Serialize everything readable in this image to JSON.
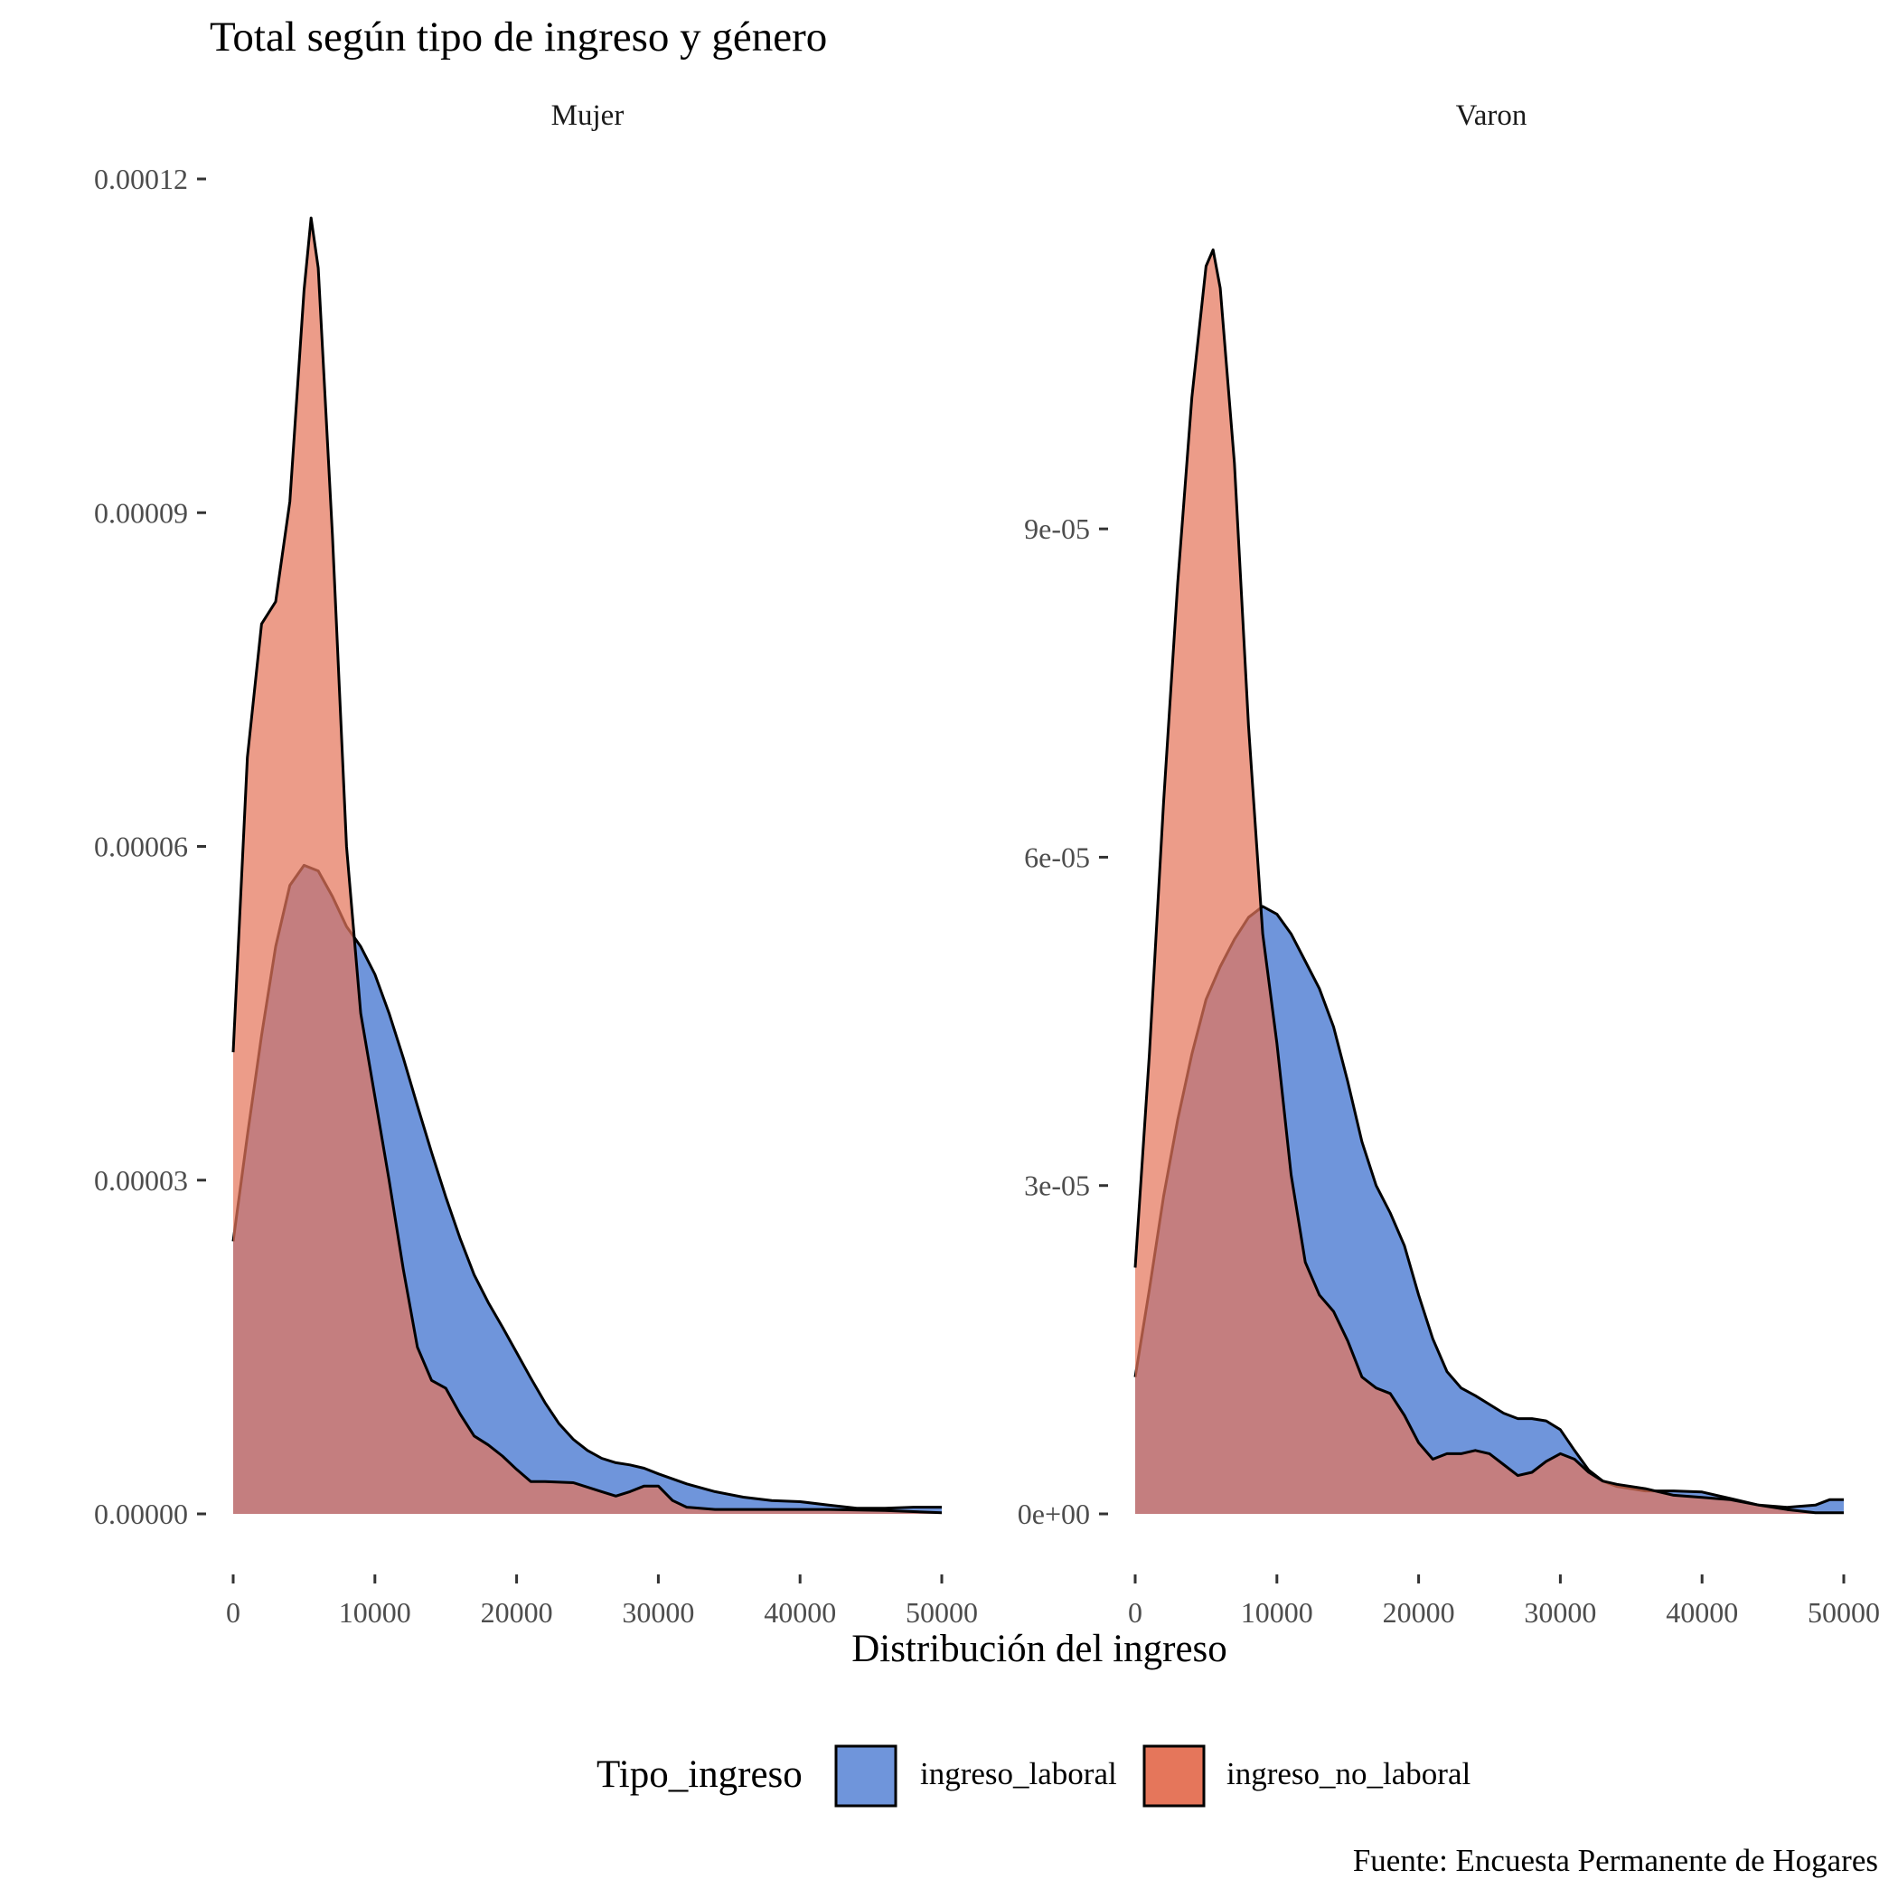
{
  "chart_data": {
    "type": "area",
    "title": "Total según tipo de ingreso y género",
    "xlabel": "Distribución del ingreso",
    "ylabel": "",
    "caption": "Fuente: Encuesta Permanente de Hogares",
    "legend": {
      "title": "Tipo_ingreso",
      "position": "bottom",
      "entries": [
        {
          "label": "ingreso_laboral",
          "color": "#6f95db"
        },
        {
          "label": "ingreso_no_laboral",
          "color": "#e5765b"
        }
      ]
    },
    "x_ticks": [
      0,
      10000,
      20000,
      30000,
      40000,
      50000
    ],
    "x_tick_labels": [
      "0",
      "10000",
      "20000",
      "30000",
      "40000",
      "50000"
    ],
    "xlim": [
      0,
      50000
    ],
    "grid": false,
    "panels": [
      {
        "strip": "Mujer",
        "ylim": [
          0,
          0.00012
        ],
        "y_ticks": [
          0,
          3e-05,
          6e-05,
          9e-05,
          0.00012
        ],
        "y_tick_labels": [
          "0.00000",
          "0.00003",
          "0.00006",
          "0.00009",
          "0.00012"
        ],
        "series": [
          {
            "name": "ingreso_laboral",
            "points": [
              [
                0,
                2.45e-05
              ],
              [
                1000,
                3.4e-05
              ],
              [
                2000,
                4.3e-05
              ],
              [
                3000,
                5.1e-05
              ],
              [
                4000,
                5.65e-05
              ],
              [
                5000,
                5.83e-05
              ],
              [
                6000,
                5.78e-05
              ],
              [
                7000,
                5.55e-05
              ],
              [
                8000,
                5.28e-05
              ],
              [
                9000,
                5.1e-05
              ],
              [
                10000,
                4.85e-05
              ],
              [
                11000,
                4.5e-05
              ],
              [
                12000,
                4.1e-05
              ],
              [
                13000,
                3.67e-05
              ],
              [
                14000,
                3.25e-05
              ],
              [
                15000,
                2.85e-05
              ],
              [
                16000,
                2.48e-05
              ],
              [
                17000,
                2.15e-05
              ],
              [
                18000,
                1.9e-05
              ],
              [
                19000,
                1.68e-05
              ],
              [
                20000,
                1.45e-05
              ],
              [
                21000,
                1.22e-05
              ],
              [
                22000,
                1e-05
              ],
              [
                23000,
                8.1e-06
              ],
              [
                24000,
                6.7e-06
              ],
              [
                25000,
                5.7e-06
              ],
              [
                26000,
                5e-06
              ],
              [
                27000,
                4.6e-06
              ],
              [
                28000,
                4.4e-06
              ],
              [
                29000,
                4.1e-06
              ],
              [
                30000,
                3.6e-06
              ],
              [
                32000,
                2.7e-06
              ],
              [
                34000,
                2e-06
              ],
              [
                36000,
                1.5e-06
              ],
              [
                38000,
                1.2e-06
              ],
              [
                40000,
                1.1e-06
              ],
              [
                42000,
                8e-07
              ],
              [
                44000,
                5e-07
              ],
              [
                46000,
                5e-07
              ],
              [
                48000,
                6e-07
              ],
              [
                50000,
                6e-07
              ]
            ]
          },
          {
            "name": "ingreso_no_laboral",
            "points": [
              [
                0,
                4.15e-05
              ],
              [
                1000,
                6.8e-05
              ],
              [
                2000,
                8e-05
              ],
              [
                3000,
                8.2e-05
              ],
              [
                4000,
                9.1e-05
              ],
              [
                5000,
                0.00011
              ],
              [
                5500,
                0.0001165
              ],
              [
                6000,
                0.000112
              ],
              [
                7000,
                8.8e-05
              ],
              [
                8000,
                6e-05
              ],
              [
                9000,
                4.5e-05
              ],
              [
                10000,
                3.75e-05
              ],
              [
                11000,
                3e-05
              ],
              [
                12000,
                2.2e-05
              ],
              [
                13000,
                1.5e-05
              ],
              [
                14000,
                1.2e-05
              ],
              [
                15000,
                1.13e-05
              ],
              [
                16000,
                9e-06
              ],
              [
                17000,
                7e-06
              ],
              [
                18000,
                6.2e-06
              ],
              [
                19000,
                5.2e-06
              ],
              [
                20000,
                4e-06
              ],
              [
                21000,
                2.9e-06
              ],
              [
                22000,
                2.9e-06
              ],
              [
                24000,
                2.8e-06
              ],
              [
                26000,
                2e-06
              ],
              [
                27000,
                1.6e-06
              ],
              [
                28000,
                2e-06
              ],
              [
                29000,
                2.5e-06
              ],
              [
                30000,
                2.5e-06
              ],
              [
                31000,
                1.2e-06
              ],
              [
                32000,
                6e-07
              ],
              [
                34000,
                4e-07
              ],
              [
                38000,
                4e-07
              ],
              [
                42000,
                4e-07
              ],
              [
                46000,
                3e-07
              ],
              [
                50000,
                1e-07
              ]
            ]
          }
        ]
      },
      {
        "strip": "Varon",
        "ylim": [
          0,
          0.000119
        ],
        "y_ticks": [
          0,
          3e-05,
          6e-05,
          9e-05
        ],
        "y_tick_labels": [
          "0e+00",
          "3e-05",
          "6e-05",
          "9e-05"
        ],
        "series": [
          {
            "name": "ingreso_laboral",
            "points": [
              [
                0,
                1.25e-05
              ],
              [
                1000,
                2.05e-05
              ],
              [
                2000,
                2.9e-05
              ],
              [
                3000,
                3.6e-05
              ],
              [
                4000,
                4.2e-05
              ],
              [
                5000,
                4.7e-05
              ],
              [
                6000,
                5e-05
              ],
              [
                7000,
                5.25e-05
              ],
              [
                8000,
                5.45e-05
              ],
              [
                9000,
                5.55e-05
              ],
              [
                10000,
                5.48e-05
              ],
              [
                11000,
                5.3e-05
              ],
              [
                12000,
                5.05e-05
              ],
              [
                13000,
                4.8e-05
              ],
              [
                14000,
                4.45e-05
              ],
              [
                15000,
                3.95e-05
              ],
              [
                16000,
                3.4e-05
              ],
              [
                17000,
                3e-05
              ],
              [
                18000,
                2.75e-05
              ],
              [
                19000,
                2.45e-05
              ],
              [
                20000,
                2e-05
              ],
              [
                21000,
                1.6e-05
              ],
              [
                22000,
                1.3e-05
              ],
              [
                23000,
                1.15e-05
              ],
              [
                24000,
                1.08e-05
              ],
              [
                25000,
                1e-05
              ],
              [
                26000,
                9.2e-06
              ],
              [
                27000,
                8.7e-06
              ],
              [
                28000,
                8.7e-06
              ],
              [
                29000,
                8.5e-06
              ],
              [
                30000,
                7.7e-06
              ],
              [
                31000,
                5.8e-06
              ],
              [
                32000,
                4e-06
              ],
              [
                33000,
                3e-06
              ],
              [
                34000,
                2.5e-06
              ],
              [
                36000,
                2.1e-06
              ],
              [
                38000,
                2.1e-06
              ],
              [
                40000,
                2e-06
              ],
              [
                42000,
                1.4e-06
              ],
              [
                44000,
                8e-07
              ],
              [
                46000,
                6e-07
              ],
              [
                48000,
                8e-07
              ],
              [
                49000,
                1.3e-06
              ],
              [
                50000,
                1.3e-06
              ]
            ]
          },
          {
            "name": "ingreso_no_laboral",
            "points": [
              [
                0,
                2.25e-05
              ],
              [
                1000,
                4.2e-05
              ],
              [
                2000,
                6.5e-05
              ],
              [
                3000,
                8.5e-05
              ],
              [
                4000,
                0.000102
              ],
              [
                5000,
                0.000114
              ],
              [
                5500,
                0.0001155
              ],
              [
                6000,
                0.000112
              ],
              [
                7000,
                9.6e-05
              ],
              [
                8000,
                7.2e-05
              ],
              [
                9000,
                5.3e-05
              ],
              [
                10000,
                4.3e-05
              ],
              [
                11000,
                3.1e-05
              ],
              [
                12000,
                2.3e-05
              ],
              [
                13000,
                2e-05
              ],
              [
                14000,
                1.85e-05
              ],
              [
                15000,
                1.58e-05
              ],
              [
                16000,
                1.25e-05
              ],
              [
                17000,
                1.15e-05
              ],
              [
                18000,
                1.1e-05
              ],
              [
                19000,
                9e-06
              ],
              [
                20000,
                6.5e-06
              ],
              [
                21000,
                5e-06
              ],
              [
                22000,
                5.5e-06
              ],
              [
                23000,
                5.5e-06
              ],
              [
                24000,
                5.8e-06
              ],
              [
                25000,
                5.5e-06
              ],
              [
                26000,
                4.5e-06
              ],
              [
                27000,
                3.5e-06
              ],
              [
                28000,
                3.8e-06
              ],
              [
                29000,
                4.8e-06
              ],
              [
                30000,
                5.5e-06
              ],
              [
                31000,
                5e-06
              ],
              [
                32000,
                3.8e-06
              ],
              [
                33000,
                3e-06
              ],
              [
                34000,
                2.7e-06
              ],
              [
                36000,
                2.3e-06
              ],
              [
                38000,
                1.7e-06
              ],
              [
                40000,
                1.5e-06
              ],
              [
                42000,
                1.3e-06
              ],
              [
                44000,
                8e-07
              ],
              [
                46000,
                4e-07
              ],
              [
                48000,
                1e-07
              ],
              [
                50000,
                1e-07
              ]
            ]
          }
        ]
      }
    ]
  }
}
